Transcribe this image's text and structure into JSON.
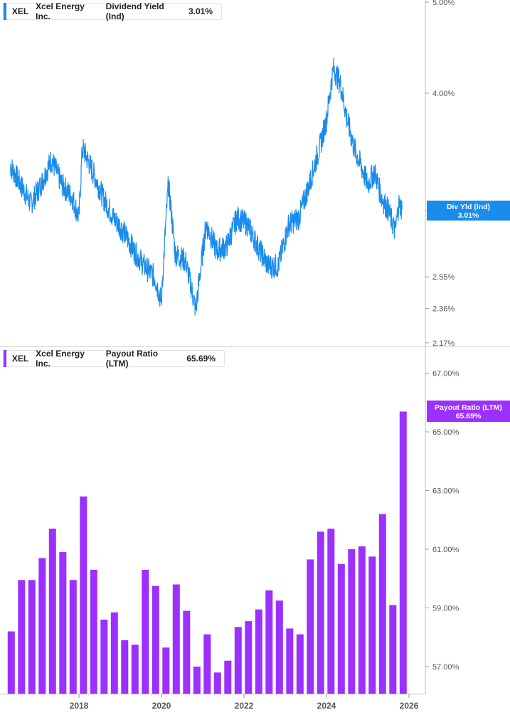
{
  "top": {
    "legend": {
      "ticker": "XEL",
      "company": "Xcel Energy Inc.",
      "metric": "Dividend Yield (Ind)",
      "value": "3.01%"
    },
    "badge": {
      "label": "Div Yld (Ind)",
      "value": "3.01%"
    },
    "color": "#1a8ceb"
  },
  "bottom": {
    "legend": {
      "ticker": "XEL",
      "company": "Xcel Energy Inc.",
      "metric": "Payout Ratio (LTM)",
      "value": "65.69%"
    },
    "badge": {
      "label": "Payout Ratio (LTM)",
      "value": "65.69%"
    },
    "color": "#9b30ff"
  },
  "chart_data": [
    {
      "type": "line",
      "series": [
        {
          "name": "Dividend Yield (Ind)",
          "x": [
            "2016-05",
            "2016-08",
            "2016-11",
            "2017-02",
            "2017-05",
            "2017-08",
            "2017-11",
            "2018-01",
            "2018-02",
            "2018-05",
            "2018-08",
            "2018-11",
            "2019-02",
            "2019-05",
            "2019-08",
            "2019-11",
            "2020-01",
            "2020-03",
            "2020-05",
            "2020-08",
            "2020-11",
            "2021-02",
            "2021-05",
            "2021-08",
            "2021-11",
            "2022-02",
            "2022-05",
            "2022-08",
            "2022-11",
            "2023-02",
            "2023-05",
            "2023-08",
            "2023-11",
            "2024-01",
            "2024-03",
            "2024-05",
            "2024-07",
            "2024-09",
            "2024-11",
            "2025-01",
            "2025-03",
            "2025-05",
            "2025-07",
            "2025-09",
            "2025-10",
            "2025-11"
          ],
          "values": [
            3.35,
            3.2,
            3.05,
            3.2,
            3.4,
            3.2,
            3.1,
            2.95,
            3.5,
            3.3,
            3.1,
            2.95,
            2.85,
            2.72,
            2.62,
            2.55,
            2.4,
            3.2,
            2.7,
            2.65,
            2.35,
            2.9,
            2.72,
            2.75,
            2.95,
            2.9,
            2.75,
            2.62,
            2.62,
            2.9,
            2.95,
            3.2,
            3.5,
            3.75,
            4.25,
            4.1,
            3.75,
            3.5,
            3.35,
            3.2,
            3.3,
            3.1,
            3.0,
            2.85,
            3.05,
            3.01
          ]
        }
      ],
      "ylim": [
        2.17,
        5.0
      ],
      "y_ticks": [
        "5.00%",
        "4.00%",
        "3.00%",
        "2.55%",
        "2.36%",
        "2.17%"
      ],
      "scale": "log"
    },
    {
      "type": "bar",
      "series": [
        {
          "name": "Payout Ratio (LTM)",
          "x": [
            "2016-Q2",
            "2016-Q3",
            "2016-Q4",
            "2017-Q1",
            "2017-Q2",
            "2017-Q3",
            "2017-Q4",
            "2018-Q1",
            "2018-Q2",
            "2018-Q3",
            "2018-Q4",
            "2019-Q1",
            "2019-Q2",
            "2019-Q3",
            "2019-Q4",
            "2020-Q1",
            "2020-Q2",
            "2020-Q3",
            "2020-Q4",
            "2021-Q1",
            "2021-Q2",
            "2021-Q3",
            "2021-Q4",
            "2022-Q1",
            "2022-Q2",
            "2022-Q3",
            "2022-Q4",
            "2023-Q1",
            "2023-Q2",
            "2023-Q3",
            "2023-Q4",
            "2024-Q1",
            "2024-Q2",
            "2024-Q3",
            "2024-Q4",
            "2025-Q1",
            "2025-Q2",
            "2025-Q3",
            "2025-Q4"
          ],
          "values": [
            58.2,
            59.95,
            59.95,
            60.7,
            61.7,
            60.9,
            59.95,
            62.8,
            60.3,
            58.6,
            58.85,
            57.9,
            57.75,
            60.3,
            59.75,
            57.65,
            59.8,
            58.9,
            57.0,
            58.1,
            56.8,
            57.2,
            58.35,
            58.55,
            58.95,
            59.6,
            59.25,
            58.3,
            58.1,
            60.65,
            61.6,
            61.7,
            60.5,
            61.0,
            61.1,
            60.75,
            62.2,
            59.1,
            65.69
          ]
        }
      ],
      "ylim": [
        56.3,
        68.1
      ],
      "y_ticks": [
        "67.00%",
        "65.00%",
        "63.00%",
        "61.00%",
        "59.00%",
        "57.00%"
      ]
    }
  ],
  "x_axis": {
    "labels": [
      "2018",
      "2020",
      "2022",
      "2024",
      "2026"
    ]
  }
}
